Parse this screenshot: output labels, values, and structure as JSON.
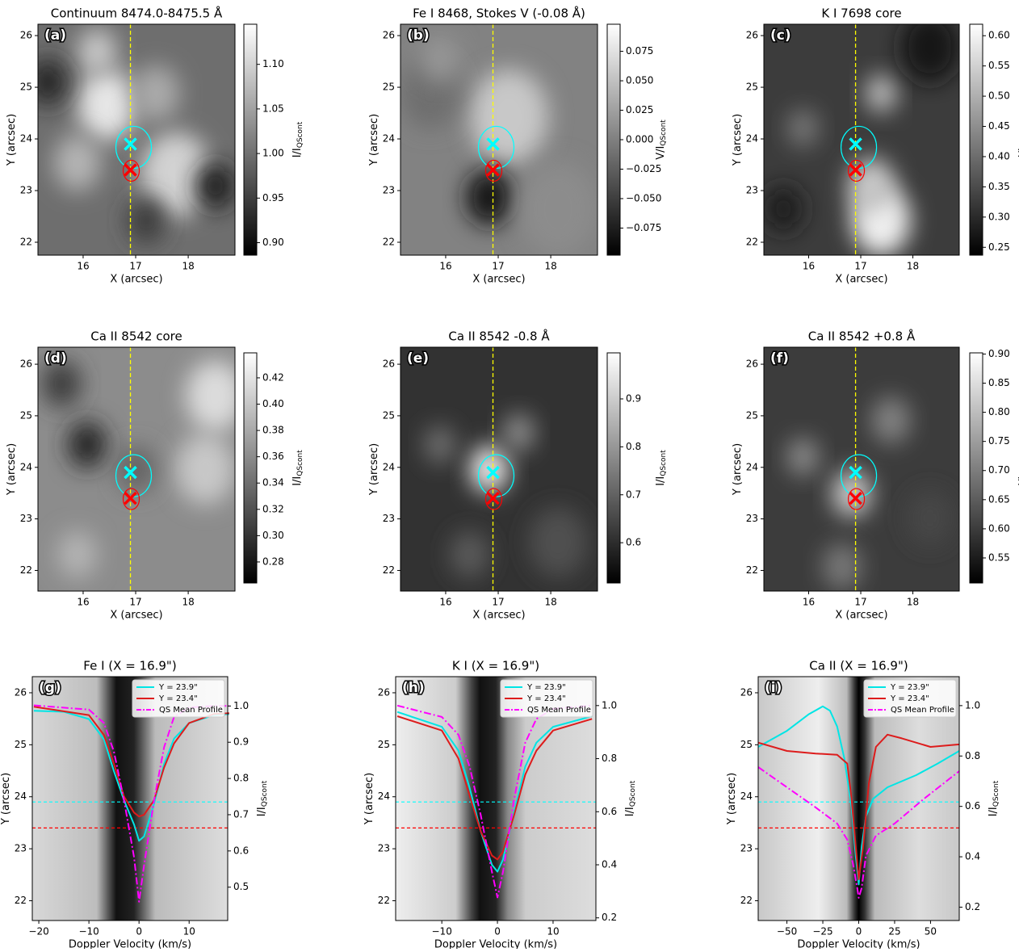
{
  "chart_data": [
    {
      "type": "heatmap",
      "panel": "(a)",
      "title": "Continuum 8474.0-8475.5 Å",
      "xlabel": "X (arcsec)",
      "ylabel": "Y (arcsec)",
      "xlim": [
        15.14,
        18.89
      ],
      "ylim": [
        21.75,
        26.22
      ],
      "xticks": [
        16,
        17,
        18
      ],
      "yticks": [
        22,
        23,
        24,
        25,
        26
      ],
      "colorbar": {
        "label": "I/I",
        "label_sub": "QScont",
        "lim": [
          0.886,
          1.145
        ],
        "ticks": [
          {
            "value": 0.9,
            "label": "0.90"
          },
          0.95,
          {
            "value": 1.0,
            "label": "1.00"
          },
          1.05,
          {
            "value": 1.1,
            "label": "1.10"
          }
        ]
      },
      "vline": {
        "x": 16.9,
        "color": "#ffff00"
      },
      "markers": [
        {
          "x": 16.9,
          "y": 23.9,
          "color": "#00ffff"
        },
        {
          "x": 16.9,
          "y": 23.4,
          "color": "#ff0000"
        }
      ]
    },
    {
      "type": "heatmap",
      "panel": "(b)",
      "title": "Fe I 8468, Stokes V (-0.08 Å)",
      "xlabel": "X (arcsec)",
      "ylabel": "Y (arcsec)",
      "xlim": [
        15.14,
        18.89
      ],
      "ylim": [
        21.75,
        26.22
      ],
      "xticks": [
        16,
        17,
        18
      ],
      "yticks": [
        22,
        23,
        24,
        25,
        26
      ],
      "colorbar": {
        "label": "V/I",
        "label_sub": "QScont",
        "lim": [
          -0.098,
          0.098
        ],
        "ticks": [
          {
            "value": -0.075,
            "label": "−0.075"
          },
          {
            "value": -0.05,
            "label": "−0.050"
          },
          {
            "value": -0.025,
            "label": "−0.025"
          },
          {
            "value": 0,
            "label": "0.000"
          },
          0.025,
          {
            "value": 0.05,
            "label": "0.050"
          },
          0.075
        ]
      },
      "vline": {
        "x": 16.9,
        "color": "#ffff00"
      },
      "markers": [
        {
          "x": 16.9,
          "y": 23.9,
          "color": "#00ffff"
        },
        {
          "x": 16.9,
          "y": 23.4,
          "color": "#ff0000"
        }
      ]
    },
    {
      "type": "heatmap",
      "panel": "(c)",
      "title": "K I 7698 core",
      "xlabel": "X (arcsec)",
      "ylabel": "Y (arcsec)",
      "xlim": [
        15.14,
        18.89
      ],
      "ylim": [
        21.75,
        26.22
      ],
      "xticks": [
        16,
        17,
        18
      ],
      "yticks": [
        22,
        23,
        24,
        25,
        26
      ],
      "colorbar": {
        "label": "I/I",
        "label_sub": "QScont",
        "lim": [
          0.237,
          0.619
        ],
        "ticks": [
          0.25,
          {
            "value": 0.3,
            "label": "0.30"
          },
          0.35,
          {
            "value": 0.4,
            "label": "0.40"
          },
          0.45,
          {
            "value": 0.5,
            "label": "0.50"
          },
          0.55,
          {
            "value": 0.6,
            "label": "0.60"
          }
        ]
      },
      "vline": {
        "x": 16.9,
        "color": "#ffff00"
      },
      "markers": [
        {
          "x": 16.9,
          "y": 23.9,
          "color": "#00ffff"
        },
        {
          "x": 16.9,
          "y": 23.4,
          "color": "#ff0000"
        }
      ]
    },
    {
      "type": "heatmap",
      "panel": "(d)",
      "title": "Ca II 8542 core",
      "xlabel": "X (arcsec)",
      "ylabel": "Y (arcsec)",
      "xlim": [
        15.14,
        18.89
      ],
      "ylim": [
        21.6,
        26.33
      ],
      "xticks": [
        16,
        17,
        18
      ],
      "yticks": [
        22,
        23,
        24,
        25,
        26
      ],
      "colorbar": {
        "label": "I/I",
        "label_sub": "QScont",
        "lim": [
          0.264,
          0.439
        ],
        "ticks": [
          0.28,
          {
            "value": 0.3,
            "label": "0.30"
          },
          0.32,
          0.34,
          0.36,
          0.38,
          {
            "value": 0.4,
            "label": "0.40"
          },
          0.42
        ]
      },
      "vline": {
        "x": 16.9,
        "color": "#ffff00"
      },
      "markers": [
        {
          "x": 16.9,
          "y": 23.9,
          "color": "#00ffff"
        },
        {
          "x": 16.9,
          "y": 23.4,
          "color": "#ff0000"
        }
      ]
    },
    {
      "type": "heatmap",
      "panel": "(e)",
      "title": "Ca II 8542 -0.8 Å",
      "xlabel": "X (arcsec)",
      "ylabel": "Y (arcsec)",
      "xlim": [
        15.14,
        18.89
      ],
      "ylim": [
        21.6,
        26.33
      ],
      "xticks": [
        16,
        17,
        18
      ],
      "yticks": [
        22,
        23,
        24,
        25,
        26
      ],
      "colorbar": {
        "label": "I/I",
        "label_sub": "QScont",
        "lim": [
          0.516,
          0.996
        ],
        "ticks": [
          0.6,
          0.7,
          0.8,
          0.9
        ]
      },
      "vline": {
        "x": 16.9,
        "color": "#ffff00"
      },
      "markers": [
        {
          "x": 16.9,
          "y": 23.9,
          "color": "#00ffff"
        },
        {
          "x": 16.9,
          "y": 23.4,
          "color": "#ff0000"
        }
      ]
    },
    {
      "type": "heatmap",
      "panel": "(f)",
      "title": "Ca II 8542 +0.8 Å",
      "xlabel": "X (arcsec)",
      "ylabel": "Y (arcsec)",
      "xlim": [
        15.14,
        18.89
      ],
      "ylim": [
        21.6,
        26.33
      ],
      "xticks": [
        16,
        17,
        18
      ],
      "yticks": [
        22,
        23,
        24,
        25,
        26
      ],
      "colorbar": {
        "label": "I/I",
        "label_sub": "QScont",
        "lim": [
          0.507,
          0.902
        ],
        "ticks": [
          0.55,
          {
            "value": 0.6,
            "label": "0.60"
          },
          0.65,
          {
            "value": 0.7,
            "label": "0.70"
          },
          0.75,
          {
            "value": 0.8,
            "label": "0.80"
          },
          0.85,
          {
            "value": 0.9,
            "label": "0.90"
          }
        ]
      },
      "vline": {
        "x": 16.9,
        "color": "#ffff00"
      },
      "markers": [
        {
          "x": 16.9,
          "y": 23.9,
          "color": "#00ffff"
        },
        {
          "x": 16.9,
          "y": 23.4,
          "color": "#ff0000"
        }
      ]
    },
    {
      "type": "line",
      "panel": "(g)",
      "title": "Fe I (X = 16.9\")",
      "xlabel": "Doppler Velocity (km/s)",
      "ylabel": "Y (arcsec)",
      "y2label": "I/I",
      "y2label_sub": "QScont",
      "xlim": [
        -21.3,
        17.7
      ],
      "ylim": [
        21.62,
        26.31
      ],
      "y2lim": [
        0.408,
        1.081
      ],
      "xticks": [
        {
          "value": -20,
          "label": "−20"
        },
        {
          "value": -10,
          "label": "−10"
        },
        0,
        10
      ],
      "yticks": [
        22,
        23,
        24,
        25,
        26
      ],
      "y2ticks": [
        0.5,
        0.6,
        0.7,
        0.8,
        0.9,
        {
          "value": 1,
          "label": "1.0"
        }
      ],
      "legend": "upper right",
      "hlines": [
        {
          "y": 23.9,
          "color": "#00ffff"
        },
        {
          "y": 23.4,
          "color": "#ff0000"
        }
      ],
      "series": [
        {
          "name": "Y = 23.9\"",
          "color": "#00e5e5",
          "style": "solid",
          "axis": "y2",
          "x": [
            -21,
            -15,
            -10,
            -7,
            -5,
            -3,
            -1,
            0,
            1,
            3,
            5,
            7,
            10,
            15,
            18
          ],
          "values": [
            0.987,
            0.984,
            0.964,
            0.908,
            0.82,
            0.74,
            0.673,
            0.628,
            0.64,
            0.73,
            0.84,
            0.91,
            0.953,
            0.975,
            0.978
          ]
        },
        {
          "name": "Y = 23.4\"",
          "color": "#dd1c1c",
          "style": "solid",
          "axis": "y2",
          "x": [
            -21,
            -10,
            -7,
            -5,
            -3,
            -1,
            0,
            1,
            3,
            5,
            7,
            10,
            15,
            18
          ],
          "values": [
            0.998,
            0.975,
            0.92,
            0.84,
            0.75,
            0.706,
            0.695,
            0.7,
            0.74,
            0.83,
            0.897,
            0.953,
            0.978,
            0.98
          ]
        },
        {
          "name": "QS Mean Profile",
          "color": "#ff00ff",
          "style": "dashdot",
          "axis": "y2",
          "x": [
            -21,
            -10,
            -7,
            -5,
            -3,
            -1,
            0,
            1,
            3,
            5,
            7,
            10,
            15,
            18
          ],
          "values": [
            1.002,
            0.99,
            0.953,
            0.874,
            0.74,
            0.583,
            0.46,
            0.56,
            0.74,
            0.886,
            0.97,
            0.996,
            1.0,
            1.0
          ]
        }
      ]
    },
    {
      "type": "line",
      "panel": "(h)",
      "title": "K I (X = 16.9\")",
      "xlabel": "Doppler Velocity (km/s)",
      "ylabel": "Y (arcsec)",
      "y2label": "I/I",
      "y2label_sub": "QScont",
      "xlim": [
        -18.3,
        17.7
      ],
      "ylim": [
        21.62,
        26.31
      ],
      "y2lim": [
        0.19,
        1.109
      ],
      "xticks": [
        {
          "value": -10,
          "label": "−10"
        },
        0,
        10
      ],
      "yticks": [
        22,
        23,
        24,
        25,
        26
      ],
      "y2ticks": [
        0.2,
        0.4,
        0.6,
        0.8,
        {
          "value": 1,
          "label": "1.0"
        }
      ],
      "legend": "upper right",
      "hlines": [
        {
          "y": 23.9,
          "color": "#00ffff"
        },
        {
          "y": 23.4,
          "color": "#ff0000"
        }
      ],
      "series": [
        {
          "name": "Y = 23.9\"",
          "color": "#00e5e5",
          "style": "solid",
          "axis": "y2",
          "x": [
            -18,
            -10,
            -7,
            -5,
            -3,
            -1,
            0,
            1,
            3,
            5,
            7,
            10,
            17
          ],
          "values": [
            0.976,
            0.92,
            0.83,
            0.69,
            0.526,
            0.4,
            0.374,
            0.42,
            0.6,
            0.77,
            0.86,
            0.92,
            0.96
          ]
        },
        {
          "name": "Y = 23.4\"",
          "color": "#dd1c1c",
          "style": "solid",
          "axis": "y2",
          "x": [
            -18,
            -10,
            -7,
            -5,
            -3,
            -1,
            0,
            1,
            3,
            5,
            7,
            10,
            17
          ],
          "values": [
            0.96,
            0.906,
            0.8,
            0.66,
            0.526,
            0.435,
            0.42,
            0.45,
            0.587,
            0.74,
            0.83,
            0.906,
            0.95
          ]
        },
        {
          "name": "QS Mean Profile",
          "color": "#ff00ff",
          "style": "dashdot",
          "axis": "y2",
          "x": [
            -18,
            -10,
            -7,
            -5,
            -3,
            -1,
            0,
            1,
            3,
            5,
            7,
            10,
            17
          ],
          "values": [
            1.0,
            0.957,
            0.89,
            0.77,
            0.587,
            0.374,
            0.277,
            0.374,
            0.647,
            0.86,
            0.95,
            0.988,
            1.0
          ]
        }
      ]
    },
    {
      "type": "line",
      "panel": "(i)",
      "title": "Ca II (X = 16.9\")",
      "xlabel": "Doppler Velocity (km/s)",
      "ylabel": "Y (arcsec)",
      "y2label": "I/I",
      "y2label_sub": "QScont",
      "xlim": [
        -70,
        70
      ],
      "ylim": [
        21.62,
        26.31
      ],
      "y2lim": [
        0.147,
        1.115
      ],
      "xticks": [
        {
          "value": -50,
          "label": "−50"
        },
        {
          "value": -25,
          "label": "−25"
        },
        0,
        25,
        50
      ],
      "yticks": [
        22,
        23,
        24,
        25,
        26
      ],
      "y2ticks": [
        0.2,
        0.4,
        0.6,
        0.8,
        {
          "value": 1,
          "label": "1.0"
        }
      ],
      "legend": "upper right",
      "hlines": [
        {
          "y": 23.9,
          "color": "#00ffff"
        },
        {
          "y": 23.4,
          "color": "#ff0000"
        }
      ],
      "series": [
        {
          "name": "Y = 23.9\"",
          "color": "#00e5e5",
          "style": "solid",
          "axis": "y2",
          "x": [
            -70,
            -50,
            -35,
            -25,
            -20,
            -15,
            -10,
            -5,
            -2,
            0,
            2,
            5,
            10,
            20,
            40,
            55,
            70
          ],
          "values": [
            0.836,
            0.9,
            0.965,
            0.997,
            0.98,
            0.917,
            0.79,
            0.6,
            0.4,
            0.29,
            0.436,
            0.56,
            0.63,
            0.676,
            0.724,
            0.77,
            0.82
          ]
        },
        {
          "name": "Y = 23.4\"",
          "color": "#dd1c1c",
          "style": "solid",
          "axis": "y2",
          "x": [
            -70,
            -50,
            -30,
            -15,
            -8,
            -5,
            -2,
            0,
            3,
            7,
            12,
            20,
            30,
            50,
            70
          ],
          "values": [
            0.853,
            0.82,
            0.81,
            0.805,
            0.77,
            0.63,
            0.436,
            0.31,
            0.436,
            0.69,
            0.836,
            0.885,
            0.87,
            0.836,
            0.846
          ]
        },
        {
          "name": "QS Mean Profile",
          "color": "#ff00ff",
          "style": "dashdot",
          "axis": "y2",
          "x": [
            -70,
            -50,
            -30,
            -15,
            -8,
            -4,
            -1,
            0,
            2,
            5,
            12,
            25,
            45,
            70
          ],
          "values": [
            0.756,
            0.676,
            0.596,
            0.532,
            0.468,
            0.372,
            0.276,
            0.237,
            0.276,
            0.404,
            0.484,
            0.532,
            0.628,
            0.74
          ]
        }
      ]
    }
  ]
}
